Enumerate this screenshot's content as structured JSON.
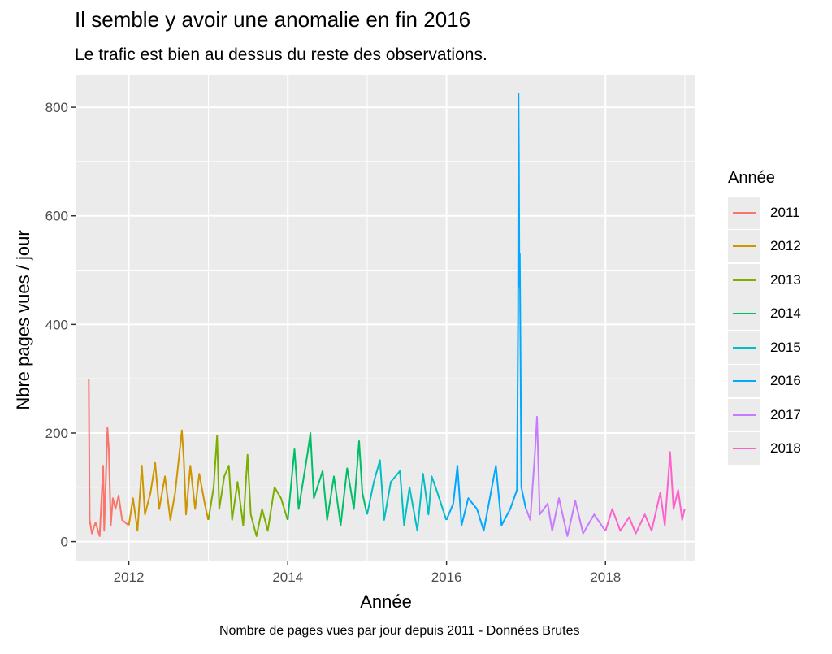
{
  "title": "Il semble y avoir une anomalie en fin 2016",
  "subtitle": "Le trafic est bien au dessus du reste des observations.",
  "caption": "Nombre de pages vues par jour depuis 2011 - Données Brutes",
  "chart_data": {
    "type": "line",
    "title": "Il semble y avoir une anomalie en fin 2016",
    "subtitle": "Le trafic est bien au dessus du reste des observations.",
    "xlabel": "Année",
    "ylabel": "Nbre pages vues / jour",
    "xlim": [
      "2011-05-01",
      "2019-02-15"
    ],
    "ylim": [
      -35,
      860
    ],
    "x_ticks": [
      "2012",
      "2014",
      "2016",
      "2018"
    ],
    "y_ticks": [
      "0",
      "200",
      "400",
      "600",
      "800"
    ],
    "grid": true,
    "legend_title": "Année",
    "legend_position": "right",
    "series": [
      {
        "name": "2011",
        "color": "#F8766D",
        "points": [
          [
            "2011-07-01",
            300
          ],
          [
            "2011-07-05",
            40
          ],
          [
            "2011-07-15",
            15
          ],
          [
            "2011-08-01",
            35
          ],
          [
            "2011-08-20",
            10
          ],
          [
            "2011-09-05",
            140
          ],
          [
            "2011-09-10",
            20
          ],
          [
            "2011-09-25",
            210
          ],
          [
            "2011-10-01",
            170
          ],
          [
            "2011-10-10",
            30
          ],
          [
            "2011-10-20",
            80
          ],
          [
            "2011-11-01",
            60
          ],
          [
            "2011-11-15",
            85
          ],
          [
            "2011-12-01",
            40
          ],
          [
            "2011-12-31",
            30
          ]
        ]
      },
      {
        "name": "2012",
        "color": "#CD9600",
        "points": [
          [
            "2012-01-01",
            30
          ],
          [
            "2012-01-20",
            80
          ],
          [
            "2012-02-10",
            20
          ],
          [
            "2012-03-01",
            140
          ],
          [
            "2012-03-15",
            50
          ],
          [
            "2012-04-10",
            90
          ],
          [
            "2012-05-01",
            145
          ],
          [
            "2012-05-20",
            60
          ],
          [
            "2012-06-15",
            120
          ],
          [
            "2012-07-10",
            40
          ],
          [
            "2012-08-01",
            90
          ],
          [
            "2012-09-01",
            205
          ],
          [
            "2012-09-10",
            150
          ],
          [
            "2012-09-20",
            50
          ],
          [
            "2012-10-10",
            140
          ],
          [
            "2012-11-01",
            60
          ],
          [
            "2012-11-20",
            125
          ],
          [
            "2012-12-15",
            70
          ],
          [
            "2012-12-31",
            40
          ]
        ]
      },
      {
        "name": "2013",
        "color": "#7CAE00",
        "points": [
          [
            "2013-01-01",
            40
          ],
          [
            "2013-01-25",
            100
          ],
          [
            "2013-02-10",
            195
          ],
          [
            "2013-02-20",
            60
          ],
          [
            "2013-03-15",
            120
          ],
          [
            "2013-04-05",
            140
          ],
          [
            "2013-04-20",
            40
          ],
          [
            "2013-05-15",
            110
          ],
          [
            "2013-06-10",
            30
          ],
          [
            "2013-06-30",
            160
          ],
          [
            "2013-07-15",
            50
          ],
          [
            "2013-08-10",
            10
          ],
          [
            "2013-09-05",
            60
          ],
          [
            "2013-10-01",
            20
          ],
          [
            "2013-11-01",
            100
          ],
          [
            "2013-12-01",
            80
          ],
          [
            "2013-12-31",
            40
          ]
        ]
      },
      {
        "name": "2014",
        "color": "#00BE67",
        "points": [
          [
            "2014-01-01",
            40
          ],
          [
            "2014-02-01",
            170
          ],
          [
            "2014-02-20",
            60
          ],
          [
            "2014-04-01",
            160
          ],
          [
            "2014-04-15",
            200
          ],
          [
            "2014-05-01",
            80
          ],
          [
            "2014-06-10",
            130
          ],
          [
            "2014-07-01",
            40
          ],
          [
            "2014-08-01",
            120
          ],
          [
            "2014-09-01",
            30
          ],
          [
            "2014-10-01",
            135
          ],
          [
            "2014-11-01",
            60
          ],
          [
            "2014-11-25",
            185
          ],
          [
            "2014-12-10",
            90
          ],
          [
            "2014-12-31",
            50
          ]
        ]
      },
      {
        "name": "2015",
        "color": "#00BFC4",
        "points": [
          [
            "2015-01-01",
            50
          ],
          [
            "2015-02-01",
            110
          ],
          [
            "2015-03-01",
            150
          ],
          [
            "2015-03-20",
            40
          ],
          [
            "2015-04-20",
            110
          ],
          [
            "2015-06-01",
            130
          ],
          [
            "2015-06-20",
            30
          ],
          [
            "2015-07-15",
            100
          ],
          [
            "2015-08-20",
            20
          ],
          [
            "2015-09-15",
            125
          ],
          [
            "2015-10-10",
            50
          ],
          [
            "2015-10-25",
            120
          ],
          [
            "2015-11-20",
            90
          ],
          [
            "2015-12-31",
            40
          ]
        ]
      },
      {
        "name": "2016",
        "color": "#00A9FF",
        "points": [
          [
            "2016-01-01",
            40
          ],
          [
            "2016-02-01",
            70
          ],
          [
            "2016-02-20",
            140
          ],
          [
            "2016-03-10",
            30
          ],
          [
            "2016-04-10",
            80
          ],
          [
            "2016-05-20",
            60
          ],
          [
            "2016-06-20",
            20
          ],
          [
            "2016-08-15",
            140
          ],
          [
            "2016-09-10",
            30
          ],
          [
            "2016-10-20",
            60
          ],
          [
            "2016-11-20",
            95
          ],
          [
            "2016-11-25",
            415
          ],
          [
            "2016-11-27",
            825
          ],
          [
            "2016-11-29",
            700
          ],
          [
            "2016-12-01",
            470
          ],
          [
            "2016-12-03",
            530
          ],
          [
            "2016-12-06",
            360
          ],
          [
            "2016-12-10",
            100
          ],
          [
            "2016-12-31",
            60
          ]
        ]
      },
      {
        "name": "2017",
        "color": "#C77CFF",
        "points": [
          [
            "2017-01-01",
            60
          ],
          [
            "2017-01-20",
            40
          ],
          [
            "2017-02-10",
            160
          ],
          [
            "2017-02-20",
            230
          ],
          [
            "2017-03-05",
            50
          ],
          [
            "2017-04-10",
            70
          ],
          [
            "2017-05-01",
            20
          ],
          [
            "2017-06-01",
            80
          ],
          [
            "2017-07-10",
            10
          ],
          [
            "2017-08-15",
            75
          ],
          [
            "2017-09-20",
            15
          ],
          [
            "2017-11-10",
            50
          ],
          [
            "2017-12-31",
            20
          ]
        ]
      },
      {
        "name": "2018",
        "color": "#FF61CC",
        "points": [
          [
            "2018-01-01",
            20
          ],
          [
            "2018-02-01",
            60
          ],
          [
            "2018-03-10",
            20
          ],
          [
            "2018-04-20",
            45
          ],
          [
            "2018-05-20",
            15
          ],
          [
            "2018-07-01",
            50
          ],
          [
            "2018-08-01",
            20
          ],
          [
            "2018-09-10",
            90
          ],
          [
            "2018-10-01",
            30
          ],
          [
            "2018-10-25",
            165
          ],
          [
            "2018-11-10",
            60
          ],
          [
            "2018-12-01",
            95
          ],
          [
            "2018-12-20",
            40
          ],
          [
            "2018-12-31",
            60
          ]
        ]
      }
    ]
  }
}
